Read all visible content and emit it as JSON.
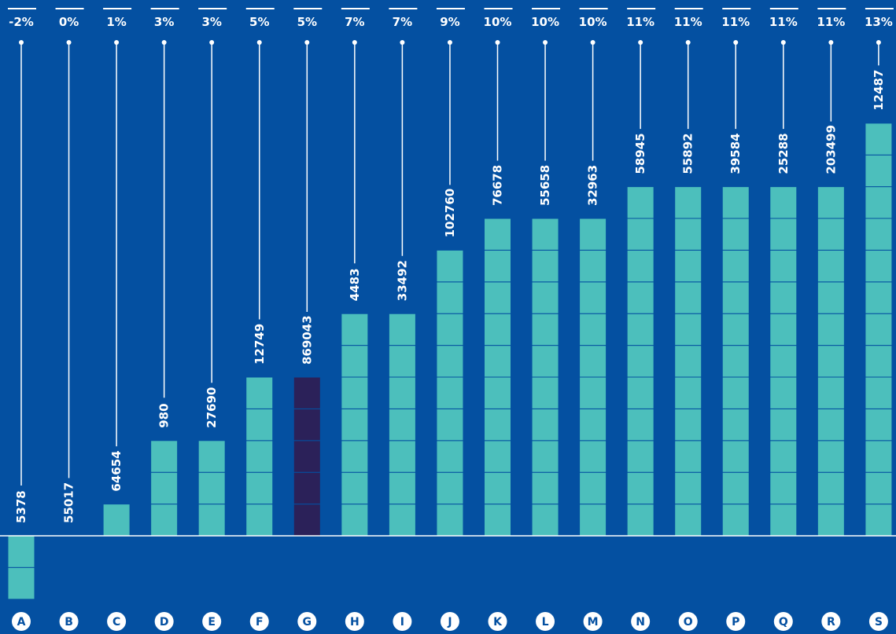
{
  "chart_data": {
    "type": "bar",
    "categories": [
      "A",
      "B",
      "C",
      "D",
      "E",
      "F",
      "G",
      "H",
      "I",
      "J",
      "K",
      "L",
      "M",
      "N",
      "O",
      "P",
      "Q",
      "R",
      "S"
    ],
    "values": [
      -2,
      0,
      1,
      3,
      3,
      5,
      5,
      7,
      7,
      9,
      10,
      10,
      10,
      11,
      11,
      11,
      11,
      11,
      13
    ],
    "percent_labels": [
      "-2%",
      "0%",
      "1%",
      "3%",
      "3%",
      "5%",
      "5%",
      "7%",
      "7%",
      "9%",
      "10%",
      "10%",
      "10%",
      "11%",
      "11%",
      "11%",
      "11%",
      "11%",
      "13%"
    ],
    "counts": [
      "5378",
      "55017",
      "64654",
      "980",
      "27690",
      "12749",
      "869043",
      "4483",
      "33492",
      "102760",
      "76678",
      "55658",
      "32963",
      "58945",
      "55892",
      "39584",
      "25288",
      "203499",
      "12487"
    ],
    "highlight_category": "G",
    "colors": {
      "background": "#0450a1",
      "bar": "#4cbfbc",
      "highlight_bar": "#2b2159",
      "segment_line": "#0450a1",
      "leader_line": "#ffffff",
      "category_circle": "#ffffff",
      "category_text": "#0450a1"
    },
    "axis": {
      "min": -2,
      "max": 13,
      "unit": "%"
    }
  }
}
